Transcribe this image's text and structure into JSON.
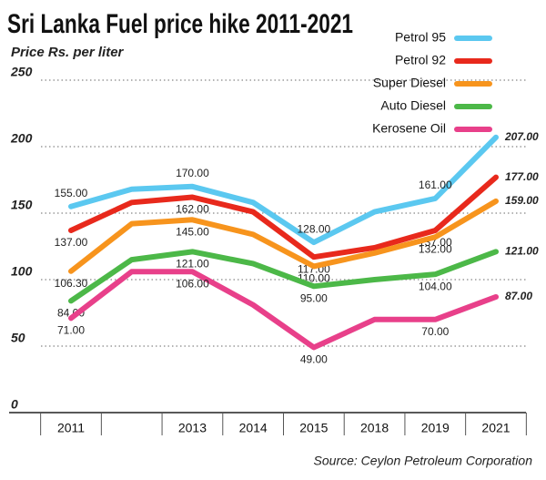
{
  "chart_data": {
    "type": "line",
    "title": "Sri Lanka Fuel price hike 2011-2021",
    "subtitle": "Price Rs. per liter",
    "source": "Source: Ceylon Petroleum Corporation",
    "categories": [
      "2011",
      null,
      "2013",
      "2014",
      "2015",
      "2018",
      "2019",
      "2021"
    ],
    "series": [
      {
        "name": "Petrol 95",
        "color": "#5bc8f0",
        "values": [
          155,
          168,
          170,
          158,
          128,
          151,
          161,
          207
        ],
        "value_labels": [
          "155.00",
          null,
          "170.00",
          null,
          "128.00",
          null,
          "161.00",
          "207.00"
        ]
      },
      {
        "name": "Petrol 92",
        "color": "#e8291c",
        "values": [
          137,
          158,
          162,
          151,
          117,
          124,
          137,
          177
        ],
        "value_labels": [
          "137.00",
          null,
          "162.00",
          null,
          "117.00",
          null,
          "137.00",
          "177.00"
        ]
      },
      {
        "name": "Super Diesel",
        "color": "#f7941d",
        "values": [
          106.3,
          142,
          145,
          134,
          110,
          120,
          132,
          159
        ],
        "value_labels": [
          "106.30",
          null,
          "145.00",
          null,
          "110.00",
          null,
          "132.00",
          "159.00"
        ]
      },
      {
        "name": "Auto Diesel",
        "color": "#4cb848",
        "values": [
          84,
          115,
          121,
          112,
          95,
          100,
          104,
          121
        ],
        "value_labels": [
          "84.00",
          null,
          "121.00",
          null,
          "95.00",
          null,
          "104.00",
          "121.00"
        ]
      },
      {
        "name": "Kerosene Oil",
        "color": "#e8408a",
        "values": [
          71,
          106,
          106,
          81,
          49,
          70,
          70,
          87
        ],
        "value_labels": [
          "71.00",
          null,
          "106.00",
          null,
          "49.00",
          null,
          "70.00",
          "87.00"
        ]
      }
    ],
    "ylim": [
      0,
      250
    ],
    "yticks": [
      0,
      50,
      100,
      150,
      200,
      250
    ],
    "grid": true,
    "legend": "top-right"
  }
}
